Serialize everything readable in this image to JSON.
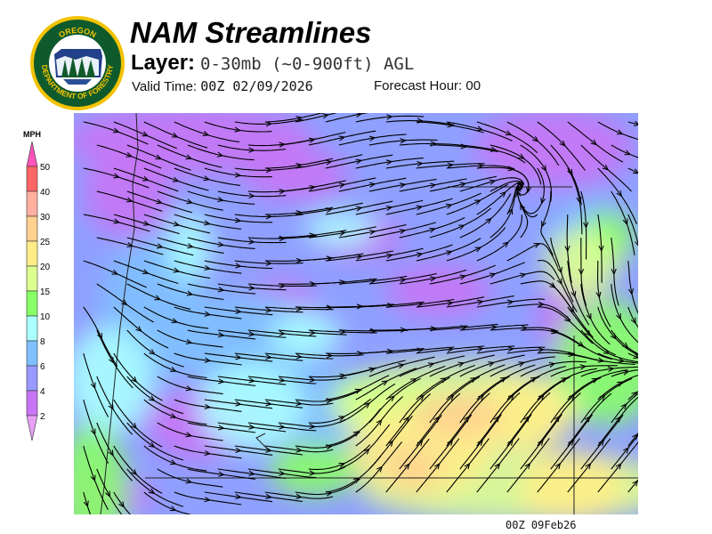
{
  "logo": {
    "text_top": "OREGON",
    "text_bottom": "DEPARTMENT OF FORESTRY"
  },
  "header": {
    "title": "NAM Streamlines",
    "layer_label": "Layer:",
    "layer_value": "0-30mb (~0-900ft) AGL",
    "valid_label": "Valid Time:",
    "valid_value": "00Z 02/09/2026",
    "forecast_label": "Forecast Hour:",
    "forecast_value": "00"
  },
  "legend": {
    "unit": "MPH",
    "ticks": [
      "50",
      "40",
      "30",
      "25",
      "20",
      "15",
      "10",
      "8",
      "6",
      "4",
      "2"
    ],
    "colors": [
      "#ff6666",
      "#ffb0a0",
      "#ffd090",
      "#ffee88",
      "#ddff90",
      "#88ff66",
      "#aaffff",
      "#80c0ff",
      "#9999ff",
      "#c875f5"
    ],
    "top_arrow_color": "#ff55bb",
    "bottom_arrow_color": "#e8a0f8"
  },
  "map": {
    "timestamp": "00Z 09Feb26"
  }
}
